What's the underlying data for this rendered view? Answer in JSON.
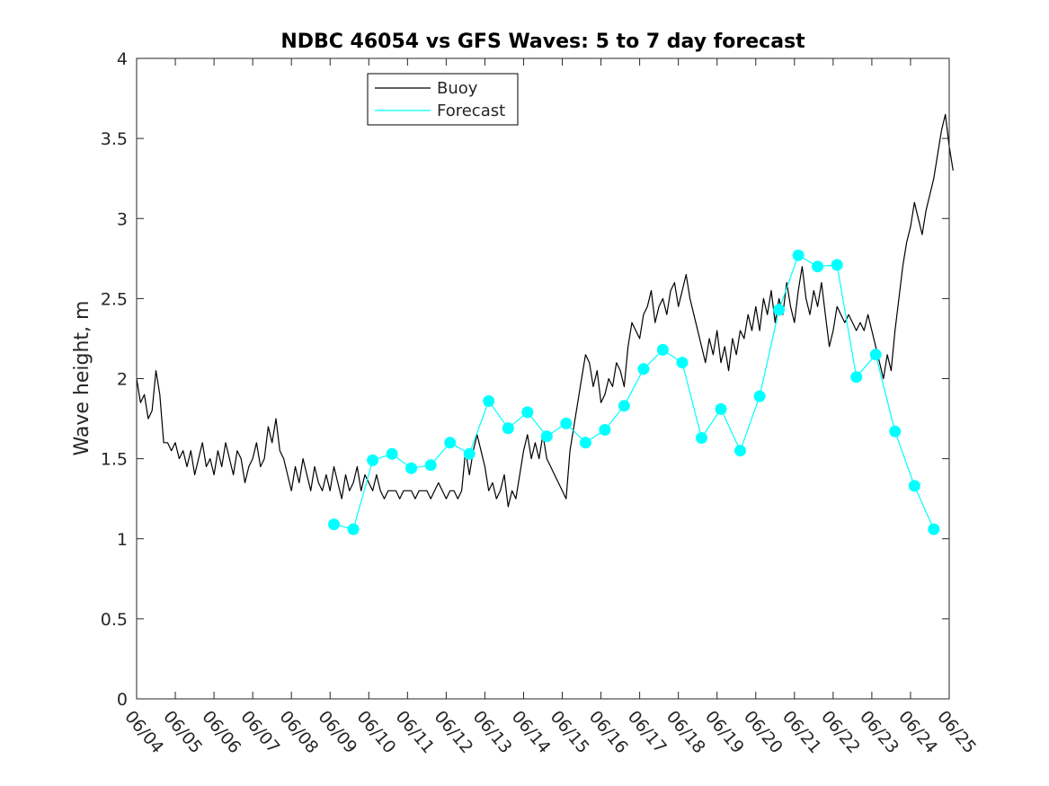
{
  "chart_data": {
    "type": "line",
    "title": "NDBC 46054 vs GFS Waves: 5 to 7 day forecast",
    "xlabel": "",
    "ylabel": "Wave height, m",
    "ylim": [
      0,
      4
    ],
    "y_ticks": [
      "0",
      "0.5",
      "1",
      "1.5",
      "2",
      "2.5",
      "3",
      "3.5",
      "4"
    ],
    "x_ticks": [
      "06/04",
      "06/05",
      "06/06",
      "06/07",
      "06/08",
      "06/09",
      "06/10",
      "06/11",
      "06/12",
      "06/13",
      "06/14",
      "06/15",
      "06/16",
      "06/17",
      "06/18",
      "06/19",
      "06/20",
      "06/21",
      "06/22",
      "06/23",
      "06/24",
      "06/25"
    ],
    "x_unit": "days since 06/04",
    "xlim": [
      0,
      21
    ],
    "legend": {
      "position": "top-left",
      "entries": [
        {
          "label": "Buoy",
          "color": "#000000"
        },
        {
          "label": "Forecast",
          "color": "#00ffff"
        }
      ]
    },
    "series": [
      {
        "name": "Buoy",
        "color": "#000000",
        "points": [
          [
            0.0,
            2.0
          ],
          [
            0.1,
            1.85
          ],
          [
            0.2,
            1.9
          ],
          [
            0.3,
            1.75
          ],
          [
            0.4,
            1.8
          ],
          [
            0.5,
            2.05
          ],
          [
            0.6,
            1.9
          ],
          [
            0.7,
            1.6
          ],
          [
            0.8,
            1.6
          ],
          [
            0.9,
            1.55
          ],
          [
            1.0,
            1.6
          ],
          [
            1.1,
            1.5
          ],
          [
            1.2,
            1.55
          ],
          [
            1.3,
            1.45
          ],
          [
            1.4,
            1.55
          ],
          [
            1.5,
            1.4
          ],
          [
            1.6,
            1.5
          ],
          [
            1.7,
            1.6
          ],
          [
            1.8,
            1.45
          ],
          [
            1.9,
            1.5
          ],
          [
            2.0,
            1.4
          ],
          [
            2.1,
            1.55
          ],
          [
            2.2,
            1.45
          ],
          [
            2.3,
            1.6
          ],
          [
            2.4,
            1.5
          ],
          [
            2.5,
            1.4
          ],
          [
            2.6,
            1.55
          ],
          [
            2.7,
            1.5
          ],
          [
            2.8,
            1.35
          ],
          [
            2.9,
            1.45
          ],
          [
            3.0,
            1.5
          ],
          [
            3.1,
            1.6
          ],
          [
            3.2,
            1.45
          ],
          [
            3.3,
            1.5
          ],
          [
            3.4,
            1.7
          ],
          [
            3.5,
            1.6
          ],
          [
            3.6,
            1.75
          ],
          [
            3.7,
            1.55
          ],
          [
            3.8,
            1.5
          ],
          [
            3.9,
            1.4
          ],
          [
            4.0,
            1.3
          ],
          [
            4.1,
            1.45
          ],
          [
            4.2,
            1.35
          ],
          [
            4.3,
            1.5
          ],
          [
            4.4,
            1.4
          ],
          [
            4.5,
            1.3
          ],
          [
            4.6,
            1.45
          ],
          [
            4.7,
            1.35
          ],
          [
            4.8,
            1.3
          ],
          [
            4.9,
            1.4
          ],
          [
            5.0,
            1.3
          ],
          [
            5.1,
            1.45
          ],
          [
            5.2,
            1.35
          ],
          [
            5.3,
            1.25
          ],
          [
            5.4,
            1.4
          ],
          [
            5.5,
            1.3
          ],
          [
            5.6,
            1.35
          ],
          [
            5.7,
            1.45
          ],
          [
            5.8,
            1.3
          ],
          [
            5.9,
            1.4
          ],
          [
            6.0,
            1.35
          ],
          [
            6.1,
            1.3
          ],
          [
            6.2,
            1.4
          ],
          [
            6.3,
            1.3
          ],
          [
            6.4,
            1.25
          ],
          [
            6.5,
            1.3
          ],
          [
            6.6,
            1.3
          ],
          [
            6.7,
            1.3
          ],
          [
            6.8,
            1.25
          ],
          [
            6.9,
            1.3
          ],
          [
            7.0,
            1.3
          ],
          [
            7.1,
            1.3
          ],
          [
            7.2,
            1.25
          ],
          [
            7.3,
            1.3
          ],
          [
            7.4,
            1.3
          ],
          [
            7.5,
            1.3
          ],
          [
            7.6,
            1.25
          ],
          [
            7.7,
            1.3
          ],
          [
            7.8,
            1.35
          ],
          [
            7.9,
            1.3
          ],
          [
            8.0,
            1.25
          ],
          [
            8.1,
            1.3
          ],
          [
            8.2,
            1.3
          ],
          [
            8.3,
            1.25
          ],
          [
            8.4,
            1.3
          ],
          [
            8.5,
            1.55
          ],
          [
            8.6,
            1.4
          ],
          [
            8.7,
            1.55
          ],
          [
            8.8,
            1.65
          ],
          [
            8.9,
            1.55
          ],
          [
            9.0,
            1.45
          ],
          [
            9.1,
            1.3
          ],
          [
            9.2,
            1.35
          ],
          [
            9.3,
            1.25
          ],
          [
            9.4,
            1.3
          ],
          [
            9.5,
            1.4
          ],
          [
            9.6,
            1.2
          ],
          [
            9.7,
            1.3
          ],
          [
            9.8,
            1.25
          ],
          [
            9.9,
            1.4
          ],
          [
            10.0,
            1.55
          ],
          [
            10.1,
            1.65
          ],
          [
            10.2,
            1.5
          ],
          [
            10.3,
            1.6
          ],
          [
            10.4,
            1.5
          ],
          [
            10.5,
            1.65
          ],
          [
            10.6,
            1.5
          ],
          [
            10.7,
            1.45
          ],
          [
            10.8,
            1.4
          ],
          [
            10.9,
            1.35
          ],
          [
            11.0,
            1.3
          ],
          [
            11.1,
            1.25
          ],
          [
            11.2,
            1.55
          ],
          [
            11.3,
            1.7
          ],
          [
            11.4,
            1.85
          ],
          [
            11.5,
            2.0
          ],
          [
            11.6,
            2.15
          ],
          [
            11.7,
            2.1
          ],
          [
            11.8,
            1.95
          ],
          [
            11.9,
            2.05
          ],
          [
            12.0,
            1.85
          ],
          [
            12.1,
            1.9
          ],
          [
            12.2,
            2.0
          ],
          [
            12.3,
            1.95
          ],
          [
            12.4,
            2.1
          ],
          [
            12.5,
            2.05
          ],
          [
            12.6,
            1.95
          ],
          [
            12.7,
            2.2
          ],
          [
            12.8,
            2.35
          ],
          [
            12.9,
            2.3
          ],
          [
            13.0,
            2.25
          ],
          [
            13.1,
            2.4
          ],
          [
            13.2,
            2.45
          ],
          [
            13.3,
            2.55
          ],
          [
            13.4,
            2.35
          ],
          [
            13.5,
            2.45
          ],
          [
            13.6,
            2.5
          ],
          [
            13.7,
            2.4
          ],
          [
            13.8,
            2.55
          ],
          [
            13.9,
            2.6
          ],
          [
            14.0,
            2.45
          ],
          [
            14.1,
            2.55
          ],
          [
            14.2,
            2.65
          ],
          [
            14.3,
            2.5
          ],
          [
            14.4,
            2.4
          ],
          [
            14.5,
            2.3
          ],
          [
            14.6,
            2.2
          ],
          [
            14.7,
            2.1
          ],
          [
            14.8,
            2.25
          ],
          [
            14.9,
            2.15
          ],
          [
            15.0,
            2.3
          ],
          [
            15.1,
            2.1
          ],
          [
            15.2,
            2.2
          ],
          [
            15.3,
            2.05
          ],
          [
            15.4,
            2.25
          ],
          [
            15.5,
            2.15
          ],
          [
            15.6,
            2.3
          ],
          [
            15.7,
            2.25
          ],
          [
            15.8,
            2.4
          ],
          [
            15.9,
            2.3
          ],
          [
            16.0,
            2.45
          ],
          [
            16.1,
            2.3
          ],
          [
            16.2,
            2.5
          ],
          [
            16.3,
            2.4
          ],
          [
            16.4,
            2.55
          ],
          [
            16.5,
            2.35
          ],
          [
            16.6,
            2.5
          ],
          [
            16.7,
            2.4
          ],
          [
            16.8,
            2.6
          ],
          [
            16.9,
            2.45
          ],
          [
            17.0,
            2.35
          ],
          [
            17.1,
            2.55
          ],
          [
            17.2,
            2.7
          ],
          [
            17.3,
            2.5
          ],
          [
            17.4,
            2.4
          ],
          [
            17.5,
            2.55
          ],
          [
            17.6,
            2.45
          ],
          [
            17.7,
            2.6
          ],
          [
            17.8,
            2.4
          ],
          [
            17.9,
            2.2
          ],
          [
            18.0,
            2.3
          ],
          [
            18.1,
            2.45
          ],
          [
            18.2,
            2.4
          ],
          [
            18.3,
            2.35
          ],
          [
            18.4,
            2.4
          ],
          [
            18.5,
            2.35
          ],
          [
            18.6,
            2.3
          ],
          [
            18.7,
            2.35
          ],
          [
            18.8,
            2.3
          ],
          [
            18.9,
            2.4
          ],
          [
            19.0,
            2.3
          ],
          [
            19.1,
            2.2
          ],
          [
            19.2,
            2.1
          ],
          [
            19.3,
            2.0
          ],
          [
            19.4,
            2.15
          ],
          [
            19.5,
            2.05
          ],
          [
            19.6,
            2.3
          ],
          [
            19.7,
            2.5
          ],
          [
            19.8,
            2.7
          ],
          [
            19.9,
            2.85
          ],
          [
            20.0,
            2.95
          ],
          [
            20.1,
            3.1
          ],
          [
            20.2,
            3.0
          ],
          [
            20.3,
            2.9
          ],
          [
            20.4,
            3.05
          ],
          [
            20.5,
            3.15
          ],
          [
            20.6,
            3.25
          ],
          [
            20.7,
            3.4
          ],
          [
            20.8,
            3.55
          ],
          [
            20.9,
            3.65
          ],
          [
            21.0,
            3.45
          ],
          [
            21.1,
            3.3
          ]
        ]
      },
      {
        "name": "Forecast",
        "color": "#00ffff",
        "points": [
          [
            5.1,
            1.09
          ],
          [
            5.6,
            1.06
          ],
          [
            6.1,
            1.49
          ],
          [
            6.6,
            1.53
          ],
          [
            7.1,
            1.44
          ],
          [
            7.6,
            1.46
          ],
          [
            8.1,
            1.6
          ],
          [
            8.6,
            1.53
          ],
          [
            9.1,
            1.86
          ],
          [
            9.6,
            1.69
          ],
          [
            10.1,
            1.79
          ],
          [
            10.6,
            1.64
          ],
          [
            11.1,
            1.72
          ],
          [
            11.6,
            1.6
          ],
          [
            12.1,
            1.68
          ],
          [
            12.6,
            1.83
          ],
          [
            13.1,
            2.06
          ],
          [
            13.6,
            2.18
          ],
          [
            14.1,
            2.1
          ],
          [
            14.6,
            1.63
          ],
          [
            15.1,
            1.81
          ],
          [
            15.6,
            1.55
          ],
          [
            16.1,
            1.89
          ],
          [
            16.6,
            2.43
          ],
          [
            17.1,
            2.77
          ],
          [
            17.6,
            2.7
          ],
          [
            18.1,
            2.71
          ],
          [
            18.6,
            2.01
          ],
          [
            19.1,
            2.15
          ],
          [
            19.6,
            1.67
          ],
          [
            20.1,
            1.33
          ],
          [
            20.6,
            1.06
          ]
        ]
      }
    ]
  }
}
